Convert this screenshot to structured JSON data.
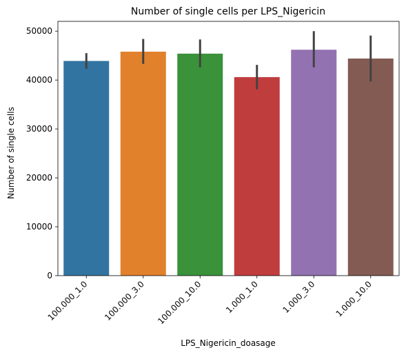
{
  "chart_data": {
    "type": "bar",
    "title": "Number of single cells per LPS_Nigericin",
    "xlabel": "LPS_Nigericin_doasage",
    "ylabel": "Number of single cells",
    "ylim": [
      0,
      52000
    ],
    "yticks": [
      0,
      10000,
      20000,
      30000,
      40000,
      50000
    ],
    "ytick_labels": [
      "0",
      "10000",
      "20000",
      "30000",
      "40000",
      "50000"
    ],
    "categories": [
      "100.000_1.0",
      "100.000_3.0",
      "100.000_10.0",
      "1.000_1.0",
      "1.000_3.0",
      "1.000_10.0"
    ],
    "values": [
      43900,
      45800,
      45400,
      40600,
      46200,
      44400
    ],
    "error_low": [
      42300,
      43300,
      42600,
      38100,
      42600,
      39700
    ],
    "error_high": [
      45500,
      48400,
      48300,
      43100,
      50000,
      49100
    ],
    "colors": [
      "#3274a1",
      "#e1812c",
      "#3a923a",
      "#c03d3e",
      "#9372b2",
      "#845b53"
    ],
    "error_color": "#424242",
    "grid": false,
    "legend": "none"
  }
}
